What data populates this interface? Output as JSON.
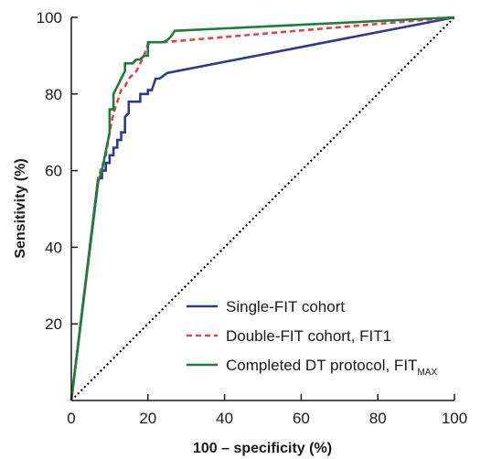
{
  "chart_data": {
    "type": "line",
    "xlabel": "100 – specificity (%)",
    "ylabel": "Sensitivity (%)",
    "xlim": [
      0,
      100
    ],
    "ylim": [
      0,
      100
    ],
    "x_ticks": [
      "0",
      "20",
      "40",
      "60",
      "80",
      "100"
    ],
    "y_ticks": [
      "20",
      "40",
      "60",
      "80",
      "100"
    ],
    "grid": false,
    "legend_position": "bottom-right",
    "reference_line": {
      "style": "dotted",
      "color": "#000000",
      "x": [
        0,
        100
      ],
      "y": [
        0,
        100
      ]
    },
    "series": [
      {
        "name": "Single-FIT cohort",
        "name_sub": "",
        "color": "#2e3a8c",
        "dash": "solid",
        "x": [
          0,
          7,
          8,
          8,
          9,
          9,
          10,
          10,
          11,
          11,
          12,
          12,
          13,
          13,
          14,
          14,
          15,
          15,
          16,
          17,
          18,
          18,
          19,
          20,
          20,
          21,
          22,
          23,
          25,
          100
        ],
        "y": [
          0,
          58,
          58,
          60,
          60,
          62,
          62,
          64,
          64,
          66,
          66,
          68,
          68,
          70,
          70,
          74,
          75,
          78,
          78,
          78,
          78,
          80,
          80,
          80,
          81,
          81,
          84,
          84,
          85.5,
          100
        ]
      },
      {
        "name": "Double-FIT cohort, FIT1",
        "name_sub": "",
        "color": "#e0454d",
        "dash": "dashed",
        "x": [
          0,
          7,
          8,
          9,
          10,
          11,
          12,
          13,
          14,
          15,
          16,
          17,
          18,
          19,
          20,
          21,
          24,
          100
        ],
        "y": [
          0,
          58,
          61,
          64,
          70,
          75,
          78,
          81,
          82,
          84,
          85,
          86,
          88,
          90,
          93,
          93.5,
          93.5,
          100
        ]
      },
      {
        "name": "Completed DT protocol, FIT",
        "name_sub": "MAX",
        "color": "#1e7d3b",
        "dash": "solid",
        "x": [
          0,
          7,
          8,
          9,
          10,
          10,
          11,
          11,
          12,
          13,
          14,
          14,
          15,
          16,
          17,
          18,
          19,
          20,
          20,
          21,
          22,
          23,
          24,
          25,
          26,
          27,
          100
        ],
        "y": [
          0,
          57,
          60,
          65,
          70,
          76,
          76,
          80,
          82,
          84,
          86,
          88,
          88,
          88,
          89,
          89,
          90,
          90,
          93.5,
          93.5,
          93.5,
          93.5,
          93.5,
          94,
          95,
          96.5,
          100
        ]
      }
    ]
  }
}
